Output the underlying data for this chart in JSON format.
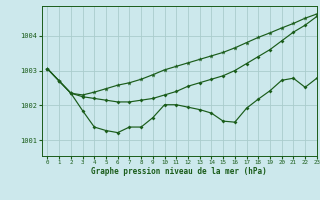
{
  "title": "Graphe pression niveau de la mer (hPa)",
  "background_color": "#cce8ec",
  "grid_color": "#aacccc",
  "line_color": "#1a5c1a",
  "xlim": [
    -0.5,
    23
  ],
  "ylim": [
    1000.55,
    1004.85
  ],
  "yticks": [
    1001,
    1002,
    1003,
    1004
  ],
  "xticks": [
    0,
    1,
    2,
    3,
    4,
    5,
    6,
    7,
    8,
    9,
    10,
    11,
    12,
    13,
    14,
    15,
    16,
    17,
    18,
    19,
    20,
    21,
    22,
    23
  ],
  "series1_x": [
    0,
    1,
    2,
    3,
    4,
    5,
    6,
    7,
    8,
    9,
    10,
    11,
    12,
    13,
    14,
    15,
    16,
    17,
    18,
    19,
    20,
    21,
    22,
    23
  ],
  "series1_y": [
    1003.05,
    1002.7,
    1002.35,
    1002.25,
    1002.2,
    1002.15,
    1002.1,
    1002.1,
    1002.15,
    1002.2,
    1002.3,
    1002.4,
    1002.55,
    1002.65,
    1002.75,
    1002.85,
    1003.0,
    1003.2,
    1003.4,
    1003.6,
    1003.85,
    1004.1,
    1004.3,
    1004.55
  ],
  "series2_x": [
    0,
    1,
    2,
    3,
    4,
    5,
    6,
    7,
    8,
    9,
    10,
    11,
    12,
    13,
    14,
    15,
    16,
    17,
    18,
    19,
    20,
    21,
    22,
    23
  ],
  "series2_y": [
    1003.05,
    1002.7,
    1002.35,
    1001.85,
    1001.38,
    1001.28,
    1001.22,
    1001.38,
    1001.38,
    1001.65,
    1002.02,
    1002.02,
    1001.95,
    1001.88,
    1001.78,
    1001.55,
    1001.52,
    1001.92,
    1002.18,
    1002.42,
    1002.72,
    1002.78,
    1002.52,
    1002.78
  ],
  "series3_x": [
    0,
    1,
    2,
    3,
    4,
    5,
    6,
    7,
    8,
    9,
    10,
    11,
    12,
    13,
    14,
    15,
    16,
    17,
    18,
    19,
    20,
    21,
    22,
    23
  ],
  "series3_y": [
    1003.05,
    1002.7,
    1002.35,
    1002.3,
    1002.38,
    1002.48,
    1002.58,
    1002.65,
    1002.75,
    1002.88,
    1003.02,
    1003.12,
    1003.22,
    1003.32,
    1003.42,
    1003.52,
    1003.65,
    1003.8,
    1003.95,
    1004.08,
    1004.22,
    1004.35,
    1004.5,
    1004.62
  ]
}
